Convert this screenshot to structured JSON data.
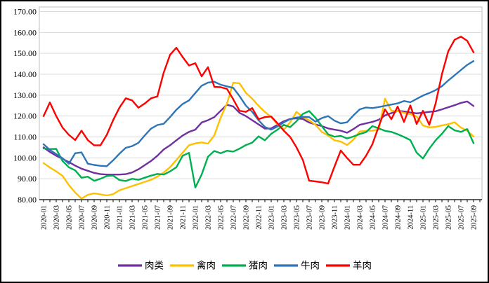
{
  "chart_data": {
    "type": "line",
    "title": "",
    "xlabel": "",
    "ylabel": "",
    "x_start": "2020-01",
    "x_interval": "monthly",
    "n_points": 69,
    "x_tick_labels": [
      "2020-01",
      "2020-03",
      "2020-05",
      "2020-07",
      "2020-09",
      "2020-11",
      "2021-01",
      "2021-03",
      "2021-05",
      "2021-07",
      "2021-09",
      "2021-11",
      "2022-01",
      "2022-03",
      "2022-05",
      "2022-07",
      "2022-09",
      "2022-11",
      "2023-01",
      "2023-03",
      "2023-05",
      "2023-07",
      "2023-09",
      "2023-11",
      "2024-01",
      "2024-03",
      "2024-05",
      "2024-07",
      "2024-09",
      "2024-11",
      "2025-01",
      "2025-03",
      "2025-05",
      "2025-07",
      "2025-09"
    ],
    "ylim": [
      80,
      170
    ],
    "y_tick_step": 10,
    "y_tick_labels": [
      "80.00",
      "90.00",
      "100.00",
      "110.00",
      "120.00",
      "130.00",
      "140.00",
      "150.00",
      "160.00",
      "170.00"
    ],
    "grid": true,
    "legend_position": "bottom",
    "series": [
      {
        "key": "meat-overall",
        "name": "肉类",
        "color": "#7030A0",
        "values": [
          105,
          102.8,
          101,
          99.5,
          98,
          96.3,
          94.8,
          93.8,
          92.8,
          92.2,
          92,
          92,
          92,
          92.2,
          93,
          94.5,
          96.5,
          98.5,
          101,
          104,
          106,
          108.4,
          110.7,
          112.4,
          113.5,
          116.9,
          118,
          119.5,
          122.5,
          125.4,
          124.6,
          121.5,
          120,
          118,
          116,
          114,
          114.1,
          115.8,
          117.5,
          118.6,
          118.9,
          118.6,
          116.9,
          116,
          115.2,
          114.1,
          113.5,
          113,
          112,
          113.8,
          115.8,
          116.5,
          117.2,
          118.2,
          120.3,
          121.4,
          122.4,
          122.2,
          121.7,
          121.3,
          121.6,
          122,
          122.3,
          123.2,
          124.2,
          125.2,
          126.3,
          127,
          124.8
        ]
      },
      {
        "key": "poultry",
        "name": "禽肉",
        "color": "#FFC000",
        "values": [
          97.5,
          95.4,
          93.5,
          91.4,
          87,
          83.4,
          80.5,
          82.3,
          83,
          82.5,
          82,
          82.6,
          84.5,
          85.5,
          86.5,
          87.5,
          88.5,
          89.5,
          91,
          93,
          95.5,
          99,
          102.5,
          106,
          106.9,
          107.4,
          106.8,
          110.7,
          119.2,
          126,
          136,
          135.6,
          131.1,
          128.3,
          124.9,
          122,
          119.5,
          116,
          113.5,
          117,
          122,
          119.5,
          118,
          115.8,
          112.4,
          110.7,
          108.4,
          107.8,
          106.1,
          108.7,
          112.6,
          112.9,
          113,
          113.5,
          128.3,
          122.6,
          122.3,
          121.5,
          121,
          119.8,
          115.5,
          114.6,
          114.8,
          115.5,
          116.1,
          117,
          114.5,
          113,
          110.2
        ]
      },
      {
        "key": "pork",
        "name": "猪肉",
        "color": "#00B050",
        "values": [
          104.5,
          104.2,
          104.3,
          98.5,
          95.5,
          94,
          90.5,
          91,
          89,
          90,
          91.3,
          91.5,
          89.4,
          88.9,
          90,
          89.5,
          90.5,
          91.5,
          92.3,
          92,
          93.5,
          95.5,
          101,
          102.4,
          85.8,
          92,
          100.5,
          103.3,
          102.2,
          103.4,
          103,
          104.4,
          106.1,
          107.3,
          110.3,
          108.4,
          111.5,
          113.5,
          115.8,
          114.7,
          117.5,
          121,
          122.4,
          119.2,
          115.2,
          111.3,
          110.1,
          110.5,
          109.3,
          110.2,
          111.4,
          112.3,
          115.2,
          114.1,
          112.9,
          112.4,
          111.3,
          110,
          108.5,
          102.5,
          99.7,
          104.4,
          108.4,
          111.5,
          115.2,
          113.2,
          112.4,
          113.8,
          107
        ]
      },
      {
        "key": "beef",
        "name": "牛肉",
        "color": "#2E75B6",
        "values": [
          106.5,
          103.8,
          101.8,
          99.8,
          97.2,
          102.2,
          102.6,
          97.2,
          96.6,
          96.2,
          96,
          98.8,
          102,
          104.8,
          105.6,
          107.2,
          110.7,
          114,
          115.7,
          116.3,
          119.5,
          123,
          125.8,
          127.5,
          131,
          134.5,
          136,
          136.4,
          135,
          134.2,
          133.5,
          129.5,
          125,
          122,
          118,
          114.8,
          113.5,
          115,
          117,
          118.5,
          119.3,
          119.6,
          119.5,
          117.3,
          119,
          120,
          117.8,
          116.5,
          117,
          120.3,
          123.2,
          124.1,
          123.8,
          124.3,
          124.9,
          125.5,
          126.1,
          127.2,
          126.6,
          128.2,
          129.8,
          131,
          132.4,
          134.3,
          137,
          139.5,
          142,
          144.5,
          146.3
        ]
      },
      {
        "key": "mutton",
        "name": "羊肉",
        "color": "#FF0000",
        "values": [
          120,
          126.5,
          120,
          114.5,
          111,
          108.5,
          113,
          108.5,
          106,
          106,
          111,
          118,
          124,
          128.5,
          127.5,
          124,
          126,
          128.5,
          129.4,
          140.8,
          149.3,
          152.7,
          148.2,
          144.2,
          145.3,
          139,
          143.4,
          134,
          133.8,
          133,
          128,
          122.5,
          122,
          123.8,
          118.5,
          119.5,
          119.8,
          116.5,
          113,
          110,
          105,
          99,
          89.1,
          88.7,
          88.3,
          87.7,
          95.8,
          103.5,
          99.9,
          96.7,
          96.7,
          101,
          106.5,
          115,
          123.2,
          118.5,
          124.5,
          117.2,
          125.1,
          116.2,
          122.5,
          115.8,
          126,
          140,
          151,
          156.5,
          158,
          156,
          150.5
        ]
      }
    ],
    "colors": {
      "grid": "#D9D9D9",
      "plot_frame": "#BFBFBF",
      "axis": "#000000",
      "background": "#FFFFFF",
      "figure_border": "#000000"
    }
  }
}
